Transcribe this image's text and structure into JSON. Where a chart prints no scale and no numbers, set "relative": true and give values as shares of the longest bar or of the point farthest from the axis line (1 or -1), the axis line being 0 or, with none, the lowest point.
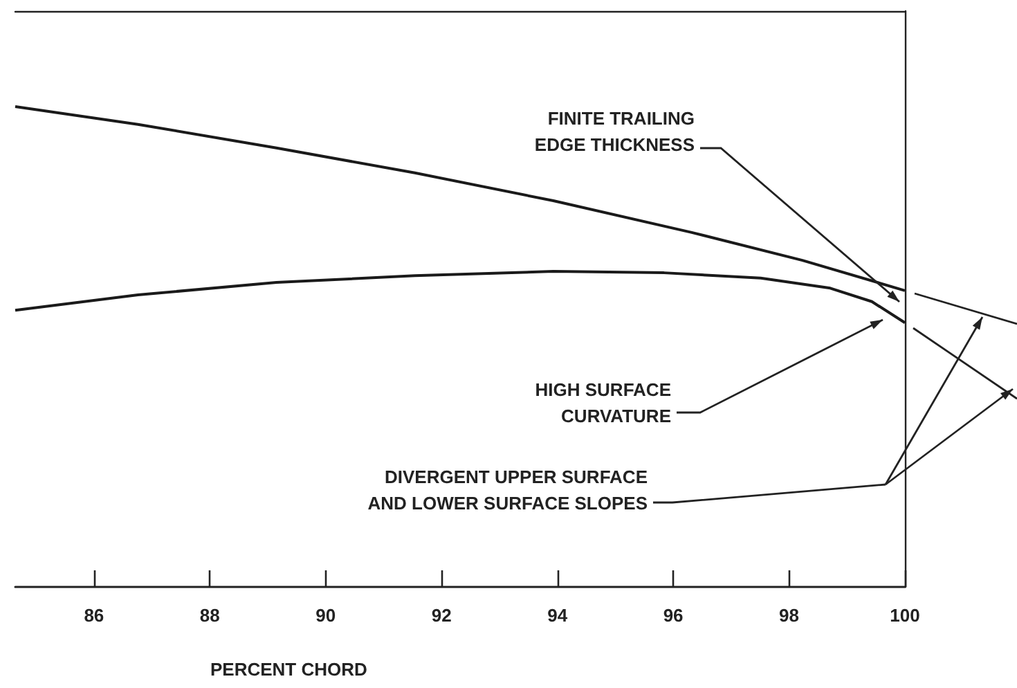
{
  "chart_data": {
    "type": "line",
    "relative": true,
    "xlabel": "PERCENT CHORD",
    "xlim": [
      84.64,
      100
    ],
    "xticks": [
      86,
      88,
      90,
      92,
      94,
      96,
      98,
      100
    ],
    "series": [
      {
        "color": "#1a1a1a",
        "x": [
          84.64,
          86.76,
          89.15,
          91.54,
          93.93,
          96.32,
          98.23,
          100
        ],
        "values": [
          1,
          0.963,
          0.914,
          0.862,
          0.804,
          0.738,
          0.68,
          0.617
        ]
      },
      {
        "color": "#1a1a1a",
        "x": [
          84.64,
          86.76,
          89.15,
          91.54,
          93.93,
          95.84,
          97.51,
          98.71,
          99.43,
          100
        ],
        "values": [
          0.576,
          0.608,
          0.634,
          0.648,
          0.657,
          0.654,
          0.643,
          0.622,
          0.594,
          0.55
        ]
      }
    ],
    "annotations": [
      "FINITE TRAILING\nEDGE THICKNESS",
      "HIGH SURFACE\nCURVATURE",
      "DIVERGENT UPPER SURFACE\nAND LOWER SURFACE SLOPES"
    ]
  }
}
